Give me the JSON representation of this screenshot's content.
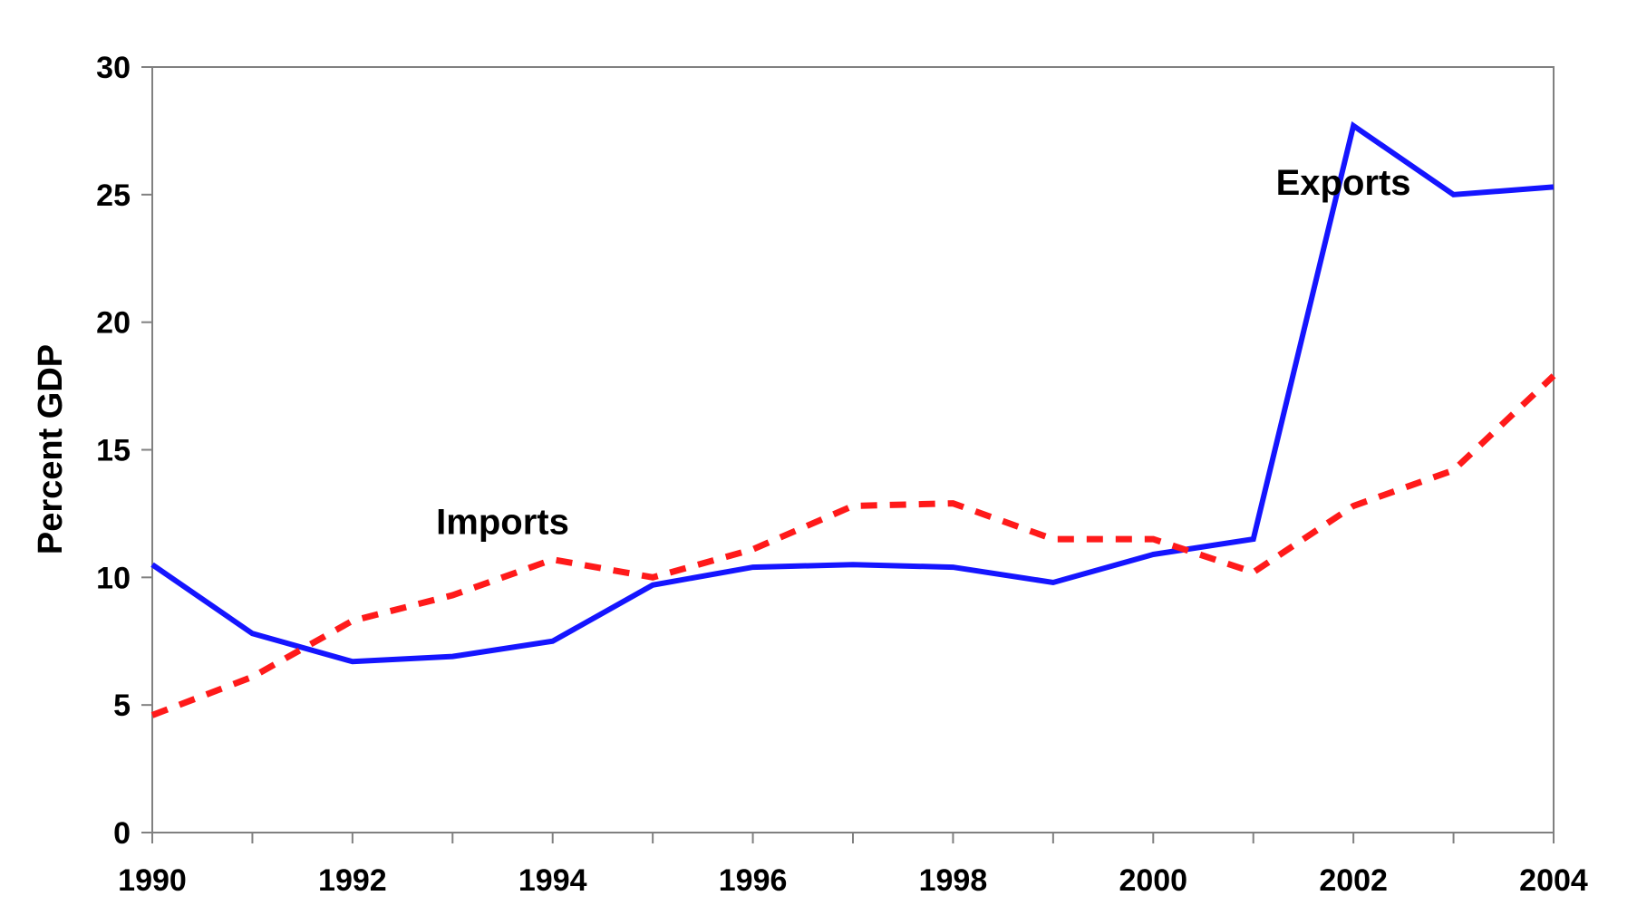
{
  "chart_data": {
    "type": "line",
    "title": "",
    "xlabel": "",
    "ylabel": "Percent GDP",
    "x": [
      1990,
      1991,
      1992,
      1993,
      1994,
      1995,
      1996,
      1997,
      1998,
      1999,
      2000,
      2001,
      2002,
      2003,
      2004
    ],
    "x_ticks": [
      "1990",
      "1992",
      "1994",
      "1996",
      "1998",
      "2000",
      "2002",
      "2004"
    ],
    "y_ticks": [
      "0",
      "5",
      "10",
      "15",
      "20",
      "25",
      "30"
    ],
    "xlim": [
      1990,
      2004
    ],
    "ylim": [
      0,
      30
    ],
    "grid": false,
    "legend": "none",
    "series": [
      {
        "name": "Exports",
        "color": "#1515ff",
        "style": "solid",
        "values": [
          10.5,
          7.8,
          6.7,
          6.9,
          7.5,
          9.7,
          10.4,
          10.5,
          10.4,
          9.8,
          10.9,
          11.5,
          27.7,
          25.0,
          25.3
        ]
      },
      {
        "name": "Imports",
        "color": "#ff1a1a",
        "style": "dashed",
        "values": [
          4.6,
          6.1,
          8.3,
          9.3,
          10.7,
          10.0,
          11.1,
          12.8,
          12.9,
          11.5,
          11.5,
          10.2,
          12.8,
          14.2,
          17.9
        ]
      }
    ],
    "annotations": [
      {
        "text": "Exports",
        "x": 2001.9,
        "y": 25.0
      },
      {
        "text": "Imports",
        "x": 1993.5,
        "y": 11.7
      }
    ]
  }
}
